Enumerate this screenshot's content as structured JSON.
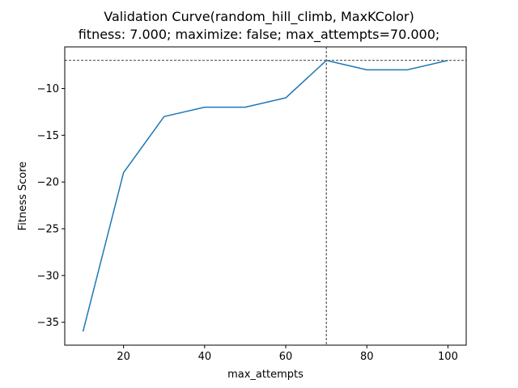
{
  "chart_data": {
    "type": "line",
    "title": "Validation Curve(random_hill_climb, MaxKColor)",
    "subtitle": "fitness: 7.000; maximize: false; max_attempts=70.000;",
    "xlabel": "max_attempts",
    "ylabel": "Fitness Score",
    "x": [
      10,
      20,
      30,
      40,
      50,
      60,
      70,
      80,
      90,
      100
    ],
    "series": [
      {
        "values": [
          -36,
          -19,
          -13,
          -12,
          -12,
          -11,
          -7,
          -8,
          -8,
          -7
        ],
        "color": "#1f77b4"
      }
    ],
    "xlim": [
      5.5,
      104.5
    ],
    "ylim": [
      -37.45,
      -5.55
    ],
    "xticks": [
      20,
      40,
      60,
      80,
      100
    ],
    "xtick_labels": [
      "20",
      "40",
      "60",
      "80",
      "100"
    ],
    "yticks": [
      -35,
      -30,
      -25,
      -20,
      -15,
      -10
    ],
    "ytick_labels": [
      "−35",
      "−30",
      "−25",
      "−20",
      "−15",
      "−10"
    ],
    "reference_lines": {
      "hline_y": -7,
      "vline_x": 70,
      "style": "dashed",
      "color": "#000000"
    },
    "grid": false,
    "legend": "none"
  }
}
